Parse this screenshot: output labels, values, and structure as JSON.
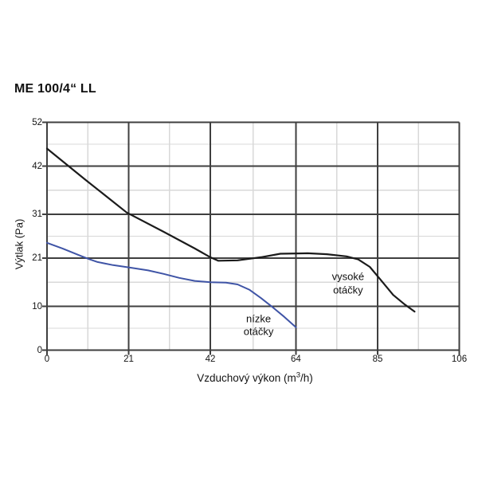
{
  "chart_data": {
    "type": "line",
    "title": "ME 100/4“ LL",
    "xlabel": "Vzduchový výkon (m³/h)",
    "xlabel_parts": {
      "pre": "Vzduchový výkon (m",
      "sup": "3",
      "post": "/h)"
    },
    "ylabel": "Výtlak (Pa)",
    "xlim": [
      0,
      106
    ],
    "ylim": [
      0,
      52
    ],
    "x_ticks": [
      0,
      21,
      42,
      64,
      85,
      106
    ],
    "y_ticks": [
      0,
      10,
      21,
      31,
      42,
      52
    ],
    "grid": {
      "major_color": "#3f3f3f",
      "minor_color": "#d8d8d8",
      "minor_placement": "midpoints-between-major",
      "on": true
    },
    "legend_position": "inline-annotations",
    "series": [
      {
        "name": "vysoké otáčky",
        "color": "#1b1b1b",
        "width": 2.2,
        "points": [
          [
            0,
            46
          ],
          [
            10,
            38.8
          ],
          [
            20.5,
            31.4
          ],
          [
            30,
            27
          ],
          [
            38,
            23.2
          ],
          [
            42,
            21.2
          ],
          [
            44,
            20.4
          ],
          [
            49,
            20.5
          ],
          [
            55,
            21.2
          ],
          [
            60,
            22
          ],
          [
            67,
            22.1
          ],
          [
            72,
            21.9
          ],
          [
            77,
            21.4
          ],
          [
            80,
            20.7
          ],
          [
            83,
            19
          ],
          [
            86,
            15.8
          ],
          [
            89,
            12.6
          ],
          [
            92,
            10.4
          ],
          [
            94.5,
            8.8
          ]
        ]
      },
      {
        "name": "nízke otáčky",
        "color": "#3f54a6",
        "width": 2,
        "points": [
          [
            0,
            24.5
          ],
          [
            4,
            23.2
          ],
          [
            9,
            21.4
          ],
          [
            11,
            20.7
          ],
          [
            13,
            20.1
          ],
          [
            17,
            19.4
          ],
          [
            21,
            18.9
          ],
          [
            26,
            18.2
          ],
          [
            30,
            17.4
          ],
          [
            34,
            16.5
          ],
          [
            38,
            15.8
          ],
          [
            42,
            15.5
          ],
          [
            46,
            15.4
          ],
          [
            49,
            15
          ],
          [
            52,
            13.8
          ],
          [
            55,
            11.9
          ],
          [
            58,
            9.8
          ],
          [
            61,
            7.6
          ],
          [
            64,
            5.2
          ]
        ]
      }
    ],
    "annotations": [
      {
        "lines": [
          "vysoké",
          "otáčky"
        ],
        "x": 77.4,
        "y": 15.1,
        "series": "vysoké otáčky"
      },
      {
        "lines": [
          "nízke",
          "otáčky"
        ],
        "x": 54.4,
        "y": 5.6,
        "series": "nízke otáčky"
      }
    ]
  }
}
